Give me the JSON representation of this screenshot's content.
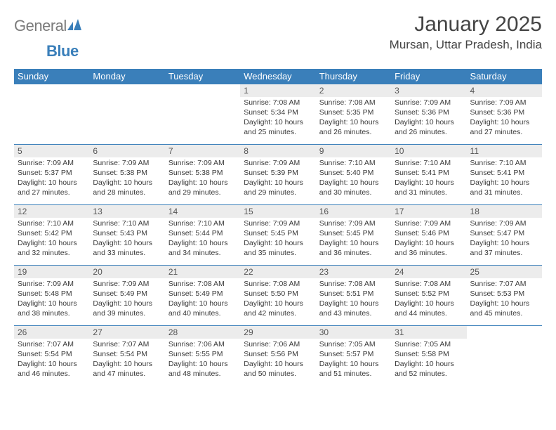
{
  "logo": {
    "text1": "General",
    "text2": "Blue"
  },
  "title": "January 2025",
  "location": "Mursan, Uttar Pradesh, India",
  "headerColor": "#3a7fba",
  "dayNames": [
    "Sunday",
    "Monday",
    "Tuesday",
    "Wednesday",
    "Thursday",
    "Friday",
    "Saturday"
  ],
  "weeks": [
    [
      {
        "n": "",
        "lines": []
      },
      {
        "n": "",
        "lines": []
      },
      {
        "n": "",
        "lines": []
      },
      {
        "n": "1",
        "lines": [
          "Sunrise: 7:08 AM",
          "Sunset: 5:34 PM",
          "Daylight: 10 hours",
          "and 25 minutes."
        ]
      },
      {
        "n": "2",
        "lines": [
          "Sunrise: 7:08 AM",
          "Sunset: 5:35 PM",
          "Daylight: 10 hours",
          "and 26 minutes."
        ]
      },
      {
        "n": "3",
        "lines": [
          "Sunrise: 7:09 AM",
          "Sunset: 5:36 PM",
          "Daylight: 10 hours",
          "and 26 minutes."
        ]
      },
      {
        "n": "4",
        "lines": [
          "Sunrise: 7:09 AM",
          "Sunset: 5:36 PM",
          "Daylight: 10 hours",
          "and 27 minutes."
        ]
      }
    ],
    [
      {
        "n": "5",
        "lines": [
          "Sunrise: 7:09 AM",
          "Sunset: 5:37 PM",
          "Daylight: 10 hours",
          "and 27 minutes."
        ]
      },
      {
        "n": "6",
        "lines": [
          "Sunrise: 7:09 AM",
          "Sunset: 5:38 PM",
          "Daylight: 10 hours",
          "and 28 minutes."
        ]
      },
      {
        "n": "7",
        "lines": [
          "Sunrise: 7:09 AM",
          "Sunset: 5:38 PM",
          "Daylight: 10 hours",
          "and 29 minutes."
        ]
      },
      {
        "n": "8",
        "lines": [
          "Sunrise: 7:09 AM",
          "Sunset: 5:39 PM",
          "Daylight: 10 hours",
          "and 29 minutes."
        ]
      },
      {
        "n": "9",
        "lines": [
          "Sunrise: 7:10 AM",
          "Sunset: 5:40 PM",
          "Daylight: 10 hours",
          "and 30 minutes."
        ]
      },
      {
        "n": "10",
        "lines": [
          "Sunrise: 7:10 AM",
          "Sunset: 5:41 PM",
          "Daylight: 10 hours",
          "and 31 minutes."
        ]
      },
      {
        "n": "11",
        "lines": [
          "Sunrise: 7:10 AM",
          "Sunset: 5:41 PM",
          "Daylight: 10 hours",
          "and 31 minutes."
        ]
      }
    ],
    [
      {
        "n": "12",
        "lines": [
          "Sunrise: 7:10 AM",
          "Sunset: 5:42 PM",
          "Daylight: 10 hours",
          "and 32 minutes."
        ]
      },
      {
        "n": "13",
        "lines": [
          "Sunrise: 7:10 AM",
          "Sunset: 5:43 PM",
          "Daylight: 10 hours",
          "and 33 minutes."
        ]
      },
      {
        "n": "14",
        "lines": [
          "Sunrise: 7:10 AM",
          "Sunset: 5:44 PM",
          "Daylight: 10 hours",
          "and 34 minutes."
        ]
      },
      {
        "n": "15",
        "lines": [
          "Sunrise: 7:09 AM",
          "Sunset: 5:45 PM",
          "Daylight: 10 hours",
          "and 35 minutes."
        ]
      },
      {
        "n": "16",
        "lines": [
          "Sunrise: 7:09 AM",
          "Sunset: 5:45 PM",
          "Daylight: 10 hours",
          "and 36 minutes."
        ]
      },
      {
        "n": "17",
        "lines": [
          "Sunrise: 7:09 AM",
          "Sunset: 5:46 PM",
          "Daylight: 10 hours",
          "and 36 minutes."
        ]
      },
      {
        "n": "18",
        "lines": [
          "Sunrise: 7:09 AM",
          "Sunset: 5:47 PM",
          "Daylight: 10 hours",
          "and 37 minutes."
        ]
      }
    ],
    [
      {
        "n": "19",
        "lines": [
          "Sunrise: 7:09 AM",
          "Sunset: 5:48 PM",
          "Daylight: 10 hours",
          "and 38 minutes."
        ]
      },
      {
        "n": "20",
        "lines": [
          "Sunrise: 7:09 AM",
          "Sunset: 5:49 PM",
          "Daylight: 10 hours",
          "and 39 minutes."
        ]
      },
      {
        "n": "21",
        "lines": [
          "Sunrise: 7:08 AM",
          "Sunset: 5:49 PM",
          "Daylight: 10 hours",
          "and 40 minutes."
        ]
      },
      {
        "n": "22",
        "lines": [
          "Sunrise: 7:08 AM",
          "Sunset: 5:50 PM",
          "Daylight: 10 hours",
          "and 42 minutes."
        ]
      },
      {
        "n": "23",
        "lines": [
          "Sunrise: 7:08 AM",
          "Sunset: 5:51 PM",
          "Daylight: 10 hours",
          "and 43 minutes."
        ]
      },
      {
        "n": "24",
        "lines": [
          "Sunrise: 7:08 AM",
          "Sunset: 5:52 PM",
          "Daylight: 10 hours",
          "and 44 minutes."
        ]
      },
      {
        "n": "25",
        "lines": [
          "Sunrise: 7:07 AM",
          "Sunset: 5:53 PM",
          "Daylight: 10 hours",
          "and 45 minutes."
        ]
      }
    ],
    [
      {
        "n": "26",
        "lines": [
          "Sunrise: 7:07 AM",
          "Sunset: 5:54 PM",
          "Daylight: 10 hours",
          "and 46 minutes."
        ]
      },
      {
        "n": "27",
        "lines": [
          "Sunrise: 7:07 AM",
          "Sunset: 5:54 PM",
          "Daylight: 10 hours",
          "and 47 minutes."
        ]
      },
      {
        "n": "28",
        "lines": [
          "Sunrise: 7:06 AM",
          "Sunset: 5:55 PM",
          "Daylight: 10 hours",
          "and 48 minutes."
        ]
      },
      {
        "n": "29",
        "lines": [
          "Sunrise: 7:06 AM",
          "Sunset: 5:56 PM",
          "Daylight: 10 hours",
          "and 50 minutes."
        ]
      },
      {
        "n": "30",
        "lines": [
          "Sunrise: 7:05 AM",
          "Sunset: 5:57 PM",
          "Daylight: 10 hours",
          "and 51 minutes."
        ]
      },
      {
        "n": "31",
        "lines": [
          "Sunrise: 7:05 AM",
          "Sunset: 5:58 PM",
          "Daylight: 10 hours",
          "and 52 minutes."
        ]
      },
      {
        "n": "",
        "lines": []
      }
    ]
  ]
}
